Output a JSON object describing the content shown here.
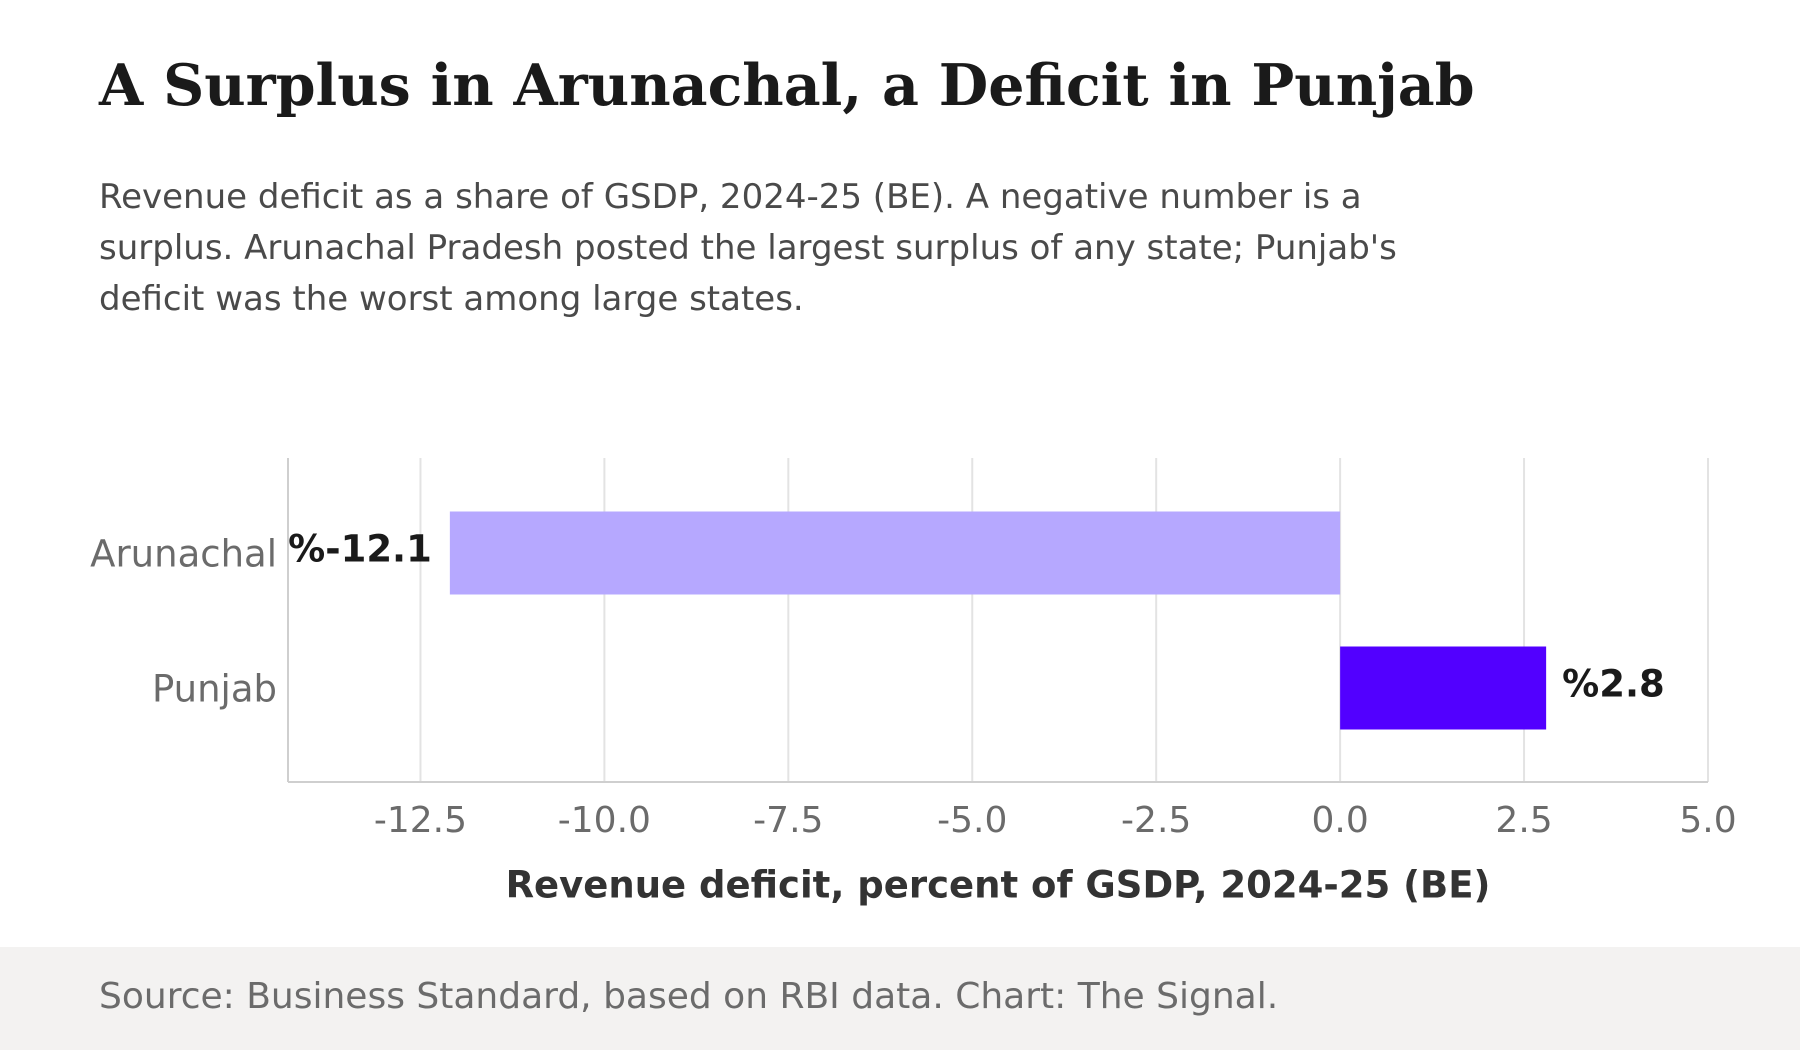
{
  "title": "A Surplus in Arunachal, a Deficit in Punjab",
  "subtitle": "Revenue deficit as a share of GSDP, 2024-25 (BE). A negative number is a surplus. Arunachal Pradesh posted the largest surplus of any state; Punjab's deficit was the worst among large states.",
  "footer": {
    "source": "Source: Business Standard, based on RBI data. Chart: The Signal."
  },
  "colors": {
    "surplus_bar": "#b6a8ff",
    "deficit_bar": "#5200ff",
    "grid": "#e3e3e3",
    "axis": "#cfcfcf",
    "tick_label": "#6b6b6b",
    "value_label": "#1a1a1a",
    "axis_title": "#333333",
    "footer_bg": "#f3f2f1"
  },
  "chart_data": {
    "type": "bar",
    "orientation": "horizontal",
    "categories": [
      "Arunachal",
      "Punjab"
    ],
    "values": [
      -12.1,
      2.8
    ],
    "value_labels": [
      "%-12.1",
      "%2.8"
    ],
    "xlabel": "Revenue deficit, percent of GSDP, 2024-25 (BE)",
    "ylabel": "",
    "xlim": [
      -14.3,
      5.0
    ],
    "xticks": [
      -12.5,
      -10.0,
      -7.5,
      -5.0,
      -2.5,
      0.0,
      2.5,
      5.0
    ],
    "xtick_labels": [
      "-12.5",
      "-10.0",
      "-7.5",
      "-5.0",
      "-2.5",
      "0.0",
      "2.5",
      "5.0"
    ],
    "grid": "vertical",
    "legend": "none"
  }
}
